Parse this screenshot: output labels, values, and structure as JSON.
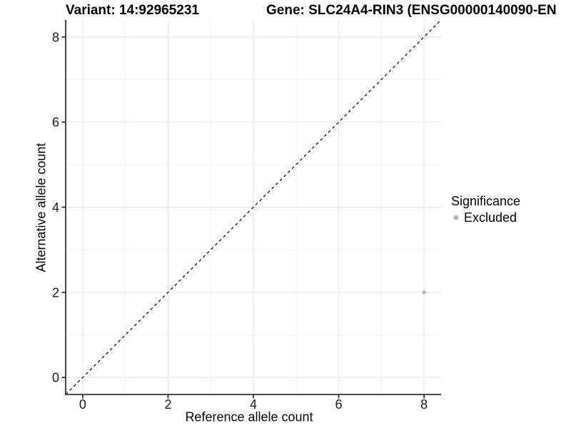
{
  "chart_data": {
    "type": "scatter",
    "title_left": "Variant: 14:92965231",
    "title_right": "Gene: SLC24A4-RIN3 (ENSG00000140090-EN",
    "xlabel": "Reference allele count",
    "ylabel": "Alternative allele count",
    "xlim": [
      -0.4,
      8.4
    ],
    "ylim": [
      -0.4,
      8.4
    ],
    "xticks": [
      0,
      2,
      4,
      6,
      8
    ],
    "yticks": [
      0,
      2,
      4,
      6,
      8
    ],
    "xticks_minor": [
      1,
      3,
      5,
      7
    ],
    "yticks_minor": [
      1,
      3,
      5,
      7
    ],
    "grid": "major+minor",
    "reference_line": {
      "type": "identity",
      "equation": "y = x",
      "style": "dashed",
      "color": "#000000"
    },
    "series": [
      {
        "name": "Excluded",
        "color": "#b3b3b3",
        "points": [
          {
            "x": 8,
            "y": 2
          }
        ]
      }
    ],
    "legend": {
      "title": "Significance",
      "position": "right",
      "entries": [
        {
          "label": "Excluded",
          "color": "#b3b3b3",
          "marker": "circle"
        }
      ]
    },
    "colors": {
      "background": "#ffffff",
      "axis_line": "#333333",
      "grid_major": "#e6e6e6",
      "grid_minor": "#f2f2f2",
      "tick_label": "#1a1a1a"
    }
  }
}
